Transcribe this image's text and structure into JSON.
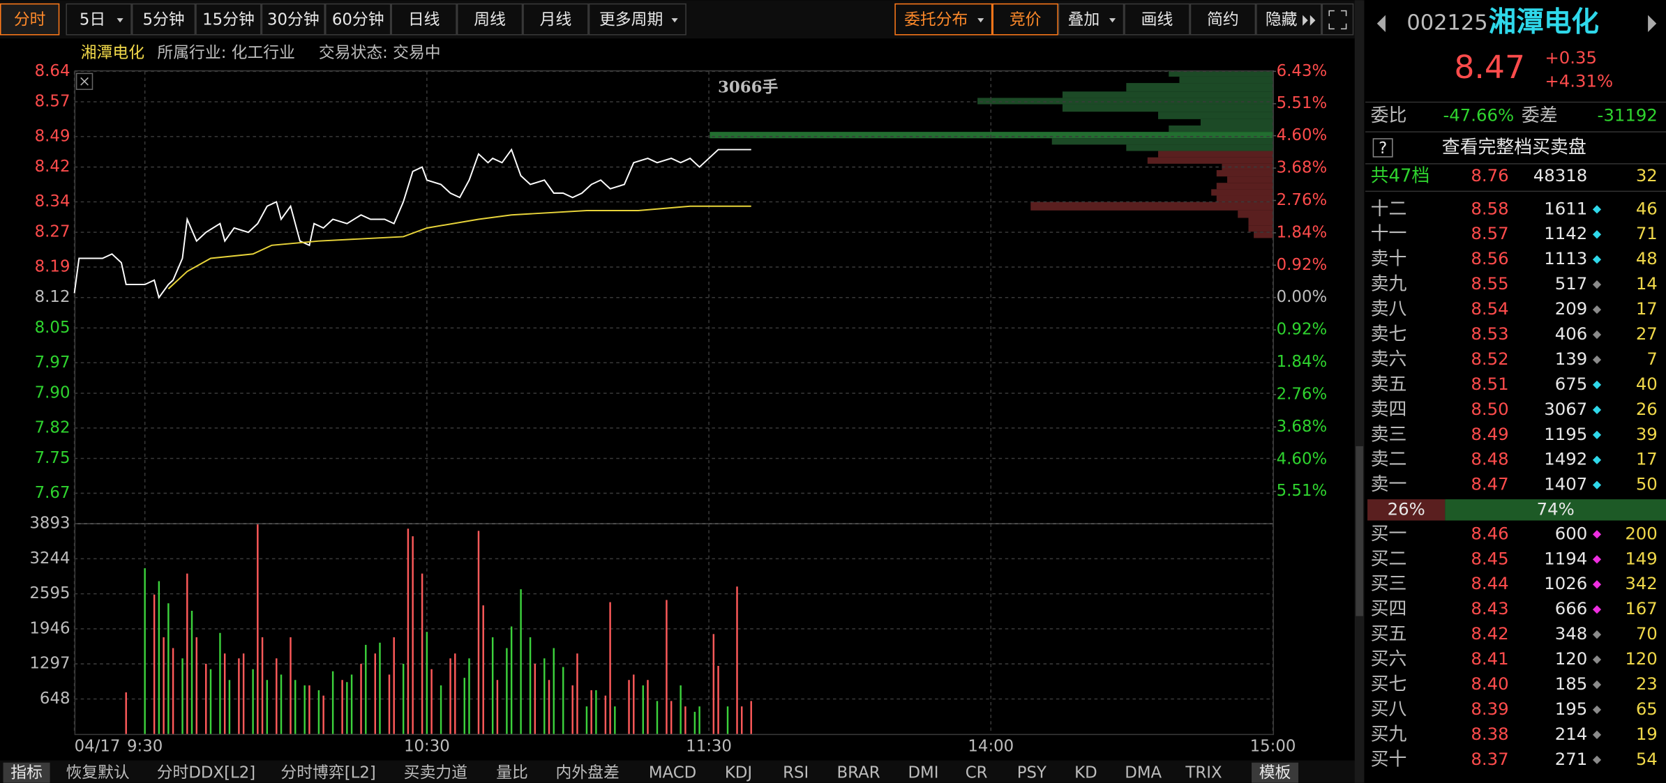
{
  "toolbar": {
    "left": [
      "分时",
      "5日",
      "5分钟",
      "15分钟",
      "30分钟",
      "60分钟",
      "日线",
      "周线",
      "月线",
      "更多周期"
    ],
    "right": [
      "委托分布",
      "竞价",
      "叠加",
      "画线",
      "简约",
      "隐藏"
    ]
  },
  "info": {
    "name": "湘潭电化",
    "industry": "所属行业: 化工行业",
    "status": "交易状态: 交易中"
  },
  "chart_data": [
    {
      "type": "line",
      "annotation": "3066手",
      "grid": true,
      "xlim": [
        0,
        255
      ],
      "xticks": [
        {
          "value": 0,
          "label": "04/17"
        },
        {
          "value": 15,
          "label": "9:30"
        },
        {
          "value": 75,
          "label": "10:30"
        },
        {
          "value": 135,
          "label": "11:30"
        },
        {
          "value": 195,
          "label": "14:00"
        },
        {
          "value": 255,
          "label": "15:00"
        }
      ],
      "ylim": [
        7.6,
        8.64
      ],
      "yticks": [
        8.64,
        8.57,
        8.49,
        8.42,
        8.34,
        8.27,
        8.19,
        8.12,
        8.05,
        7.97,
        {
          "value": 7.9,
          "label": "7.90"
        },
        7.82,
        7.75,
        7.67
      ],
      "y2lim": [
        -6.43,
        6.43
      ],
      "y2ticks": [
        {
          "value": 6.43,
          "label": "6.43%"
        },
        {
          "value": 5.51,
          "label": "5.51%"
        },
        {
          "value": 4.6,
          "label": "4.60%"
        },
        {
          "value": 3.68,
          "label": "3.68%"
        },
        {
          "value": 2.76,
          "label": "2.76%"
        },
        {
          "value": 1.84,
          "label": "1.84%"
        },
        {
          "value": 0.92,
          "label": "0.92%"
        },
        {
          "value": 0,
          "label": "0.00%"
        },
        {
          "value": -0.92,
          "label": "0.92%"
        },
        {
          "value": -1.84,
          "label": "1.84%"
        },
        {
          "value": -2.76,
          "label": "2.76%"
        },
        {
          "value": -3.68,
          "label": "3.68%"
        },
        {
          "value": -4.6,
          "label": "4.60%"
        },
        {
          "value": -5.51,
          "label": "5.51%"
        }
      ],
      "series": [
        {
          "color": "#ffffff",
          "x": [
            0,
            1,
            6,
            8,
            10,
            11,
            15,
            17,
            18,
            20,
            21,
            23,
            24,
            26,
            28,
            31,
            32,
            34,
            37,
            39,
            41,
            43,
            44,
            46,
            48,
            50,
            51,
            53,
            55,
            58,
            61,
            63,
            66,
            68,
            70,
            72,
            74,
            75,
            78,
            80,
            82,
            84,
            86,
            88,
            89,
            91,
            93,
            95,
            97,
            100,
            102,
            104,
            106,
            108,
            110,
            112,
            114,
            117,
            119,
            122,
            124,
            127,
            129,
            131,
            133,
            135,
            137,
            140,
            144
          ],
          "values": [
            8.13,
            8.21,
            8.21,
            8.22,
            8.2,
            8.15,
            8.15,
            8.16,
            8.12,
            8.15,
            8.16,
            8.21,
            8.3,
            8.25,
            8.27,
            8.29,
            8.25,
            8.28,
            8.27,
            8.29,
            8.33,
            8.34,
            8.3,
            8.33,
            8.25,
            8.24,
            8.29,
            8.28,
            8.3,
            8.29,
            8.31,
            8.3,
            8.3,
            8.29,
            8.34,
            8.41,
            8.42,
            8.39,
            8.38,
            8.36,
            8.35,
            8.39,
            8.45,
            8.43,
            8.44,
            8.43,
            8.46,
            8.4,
            8.38,
            8.39,
            8.36,
            8.36,
            8.35,
            8.36,
            8.38,
            8.39,
            8.37,
            8.38,
            8.43,
            8.44,
            8.43,
            8.44,
            8.43,
            8.44,
            8.42,
            8.44,
            8.46,
            8.46,
            8.46
          ]
        },
        {
          "color": "#e8d43a",
          "x": [
            20,
            24,
            29,
            38,
            42,
            52,
            70,
            75,
            86,
            93,
            109,
            120,
            131,
            144
          ],
          "values": [
            8.14,
            8.18,
            8.21,
            8.22,
            8.24,
            8.25,
            8.26,
            8.28,
            8.3,
            8.31,
            8.32,
            8.32,
            8.33,
            8.33
          ]
        }
      ]
    },
    {
      "type": "bar",
      "xlim": [
        0,
        255
      ],
      "ylim": [
        0,
        3893
      ],
      "yticks": [
        3893,
        3244,
        2595,
        1946,
        1297,
        648
      ],
      "series": [
        {
          "color": "#ff5a5a",
          "x": [
            11,
            17,
            19,
            21,
            24,
            26,
            28,
            32,
            35,
            36,
            39,
            40,
            43,
            46,
            50,
            53,
            57,
            61,
            64,
            67,
            68,
            71,
            72,
            74,
            76,
            80,
            81,
            86,
            87,
            90,
            98,
            101,
            106,
            107,
            110,
            113,
            114,
            118,
            119,
            122,
            126,
            127,
            130,
            136,
            137,
            141,
            142,
            144
          ],
          "values": [
            770,
            2580,
            1790,
            1590,
            2970,
            1790,
            1300,
            1490,
            1400,
            1490,
            3880,
            1790,
            1400,
            1790,
            900,
            710,
            1000,
            1300,
            1490,
            1100,
            1790,
            3800,
            3660,
            2970,
            1200,
            1400,
            1490,
            3760,
            2380,
            1000,
            1300,
            1000,
            900,
            1490,
            810,
            710,
            2440,
            1000,
            1100,
            1000,
            2480,
            610,
            510,
            1850,
            1260,
            2730,
            510,
            610
          ]
        },
        {
          "color": "#3cd23c",
          "x": [
            15,
            18,
            20,
            23,
            25,
            29,
            31,
            33,
            38,
            41,
            44,
            47,
            49,
            52,
            55,
            58,
            59,
            62,
            65,
            70,
            75,
            78,
            83,
            84,
            89,
            92,
            93,
            95,
            97,
            100,
            102,
            104,
            109,
            111,
            115,
            121,
            124,
            129,
            132,
            133,
            139
          ],
          "values": [
            3070,
            2830,
            2420,
            1400,
            2280,
            1200,
            1870,
            1000,
            1200,
            1000,
            1100,
            1000,
            900,
            810,
            1160,
            960,
            1100,
            1650,
            1690,
            1300,
            1890,
            900,
            1040,
            1400,
            1790,
            1590,
            1990,
            2680,
            1790,
            1400,
            1590,
            1240,
            510,
            810,
            510,
            900,
            610,
            900,
            410,
            510,
            510
          ]
        }
      ]
    }
  ],
  "quote": {
    "code": "002125",
    "name": "湘潭电化",
    "price": "8.47",
    "change": "+0.35",
    "pct": "+4.31%",
    "wb_label": "委比",
    "wb": "-47.66%",
    "wc_label": "委差",
    "wc": "-31192",
    "full": "查看完整档买卖盘",
    "total": {
      "level": "共47档",
      "price": "8.76",
      "volume": "48318",
      "count": "32"
    }
  },
  "sell": [
    {
      "level": "十二",
      "price": "8.58",
      "volume": "1611",
      "count": "46",
      "dot": "#2fd8ea"
    },
    {
      "level": "十一",
      "price": "8.57",
      "volume": "1142",
      "count": "71",
      "dot": "#2fd8ea"
    },
    {
      "level": "卖十",
      "price": "8.56",
      "volume": "1113",
      "count": "48",
      "dot": "#2fd8ea"
    },
    {
      "level": "卖九",
      "price": "8.55",
      "volume": "517",
      "count": "14",
      "dot": "#8a8a8a"
    },
    {
      "level": "卖八",
      "price": "8.54",
      "volume": "209",
      "count": "17",
      "dot": "#8a8a8a"
    },
    {
      "level": "卖七",
      "price": "8.53",
      "volume": "406",
      "count": "27",
      "dot": "#8a8a8a"
    },
    {
      "level": "卖六",
      "price": "8.52",
      "volume": "139",
      "count": "7",
      "dot": "#8a8a8a"
    },
    {
      "level": "卖五",
      "price": "8.51",
      "volume": "675",
      "count": "40",
      "dot": "#2fd8ea"
    },
    {
      "level": "卖四",
      "price": "8.50",
      "volume": "3067",
      "count": "26",
      "dot": "#2fd8ea"
    },
    {
      "level": "卖三",
      "price": "8.49",
      "volume": "1195",
      "count": "39",
      "dot": "#2fd8ea"
    },
    {
      "level": "卖二",
      "price": "8.48",
      "volume": "1492",
      "count": "17",
      "dot": "#2fd8ea"
    },
    {
      "level": "卖一",
      "price": "8.47",
      "volume": "1407",
      "count": "50",
      "dot": "#2fd8ea"
    }
  ],
  "ratio": {
    "values": [
      26,
      74
    ],
    "value_labels": [
      "26%",
      "74%"
    ],
    "colors": [
      "#5a1f1f",
      "#1d5a26"
    ]
  },
  "buy": [
    {
      "level": "买一",
      "price": "8.46",
      "volume": "600",
      "count": "200",
      "dot": "#ee2ee0"
    },
    {
      "level": "买二",
      "price": "8.45",
      "volume": "1194",
      "count": "149",
      "dot": "#ee2ee0"
    },
    {
      "level": "买三",
      "price": "8.44",
      "volume": "1026",
      "count": "342",
      "dot": "#ee2ee0"
    },
    {
      "level": "买四",
      "price": "8.43",
      "volume": "666",
      "count": "167",
      "dot": "#ee2ee0"
    },
    {
      "level": "买五",
      "price": "8.42",
      "volume": "348",
      "count": "70",
      "dot": "#8a8a8a"
    },
    {
      "level": "买六",
      "price": "8.41",
      "volume": "120",
      "count": "120",
      "dot": "#8a8a8a"
    },
    {
      "level": "买七",
      "price": "8.40",
      "volume": "185",
      "count": "23",
      "dot": "#8a8a8a"
    },
    {
      "level": "买八",
      "price": "8.39",
      "volume": "195",
      "count": "65",
      "dot": "#8a8a8a"
    },
    {
      "level": "买九",
      "price": "8.38",
      "volume": "214",
      "count": "19",
      "dot": "#8a8a8a"
    },
    {
      "level": "买十",
      "price": "8.37",
      "volume": "271",
      "count": "54",
      "dot": "#8a8a8a"
    }
  ],
  "indicators": [
    "指标",
    "恢复默认",
    "分时DDX[L2]",
    "分时博弈[L2]",
    "买卖力道",
    "量比",
    "内外盘差",
    "MACD",
    "KDJ",
    "RSI",
    "BRAR",
    "DMI",
    "CR",
    "PSY",
    "KD",
    "DMA",
    "TRIX",
    "模板"
  ]
}
